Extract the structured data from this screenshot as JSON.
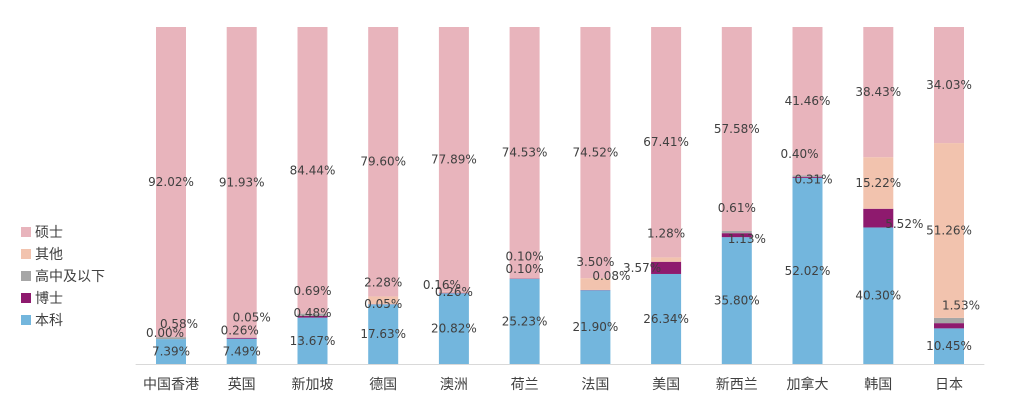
{
  "chart_data": {
    "type": "bar",
    "stacked": true,
    "percent_stacked": true,
    "categories": [
      "中国香港",
      "英国",
      "新加坡",
      "德国",
      "澳洲",
      "荷兰",
      "法国",
      "美国",
      "新西兰",
      "加拿大",
      "韩国",
      "日本"
    ],
    "series": [
      {
        "name": "本科",
        "color": "#73b6dd",
        "values": [
          7.39,
          7.49,
          13.67,
          17.63,
          20.82,
          25.23,
          21.9,
          26.34,
          35.8,
          52.02,
          40.3,
          10.45
        ],
        "labels": [
          "7.39%",
          "7.49%",
          "13.67%",
          "17.63%",
          "20.82%",
          "25.23%",
          "21.90%",
          "26.34%",
          "35.80%",
          "52.02%",
          "40.30%",
          "10.45%"
        ]
      },
      {
        "name": "博士",
        "color": "#8e1a6e",
        "values": [
          0.0,
          0.26,
          0.48,
          0.05,
          0.16,
          0.1,
          0.08,
          3.57,
          1.13,
          0.31,
          5.52,
          1.53
        ],
        "labels": [
          "0.00%",
          "0.26%",
          "0.48%",
          "0.05%",
          "0.16%",
          "0.10%",
          "0.08%",
          "3.57%",
          "1.13%",
          "0.31%",
          "5.52%",
          "1.53%"
        ]
      },
      {
        "name": "高中及以下",
        "color": "#a6a6a6",
        "values": [
          0.58,
          0.05,
          0.69,
          0.0,
          0.0,
          0.1,
          0.0,
          0.0,
          0.61,
          0.4,
          0.0,
          1.53
        ],
        "labels": [
          "0.58%",
          "0.05%",
          "0.69%",
          "",
          "",
          "0.10%",
          "",
          "",
          "0.61%",
          "0.40%",
          "",
          ""
        ]
      },
      {
        "name": "其他",
        "color": "#f2c3ae",
        "values": [
          0.0,
          0.0,
          0.0,
          2.28,
          0.26,
          0.0,
          3.5,
          1.28,
          0.0,
          0.0,
          15.22,
          51.26
        ],
        "labels": [
          "",
          "",
          "",
          "2.28%",
          "0.26%",
          "",
          "3.50%",
          "1.28%",
          "",
          "",
          "15.22%",
          "51.26%"
        ]
      },
      {
        "name": "硕士",
        "color": "#e8b4bc",
        "values": [
          92.02,
          91.93,
          84.44,
          79.6,
          77.89,
          74.53,
          74.52,
          67.41,
          57.58,
          41.46,
          38.43,
          34.03
        ],
        "labels": [
          "92.02%",
          "91.93%",
          "84.44%",
          "79.60%",
          "77.89%",
          "74.53%",
          "74.52%",
          "67.41%",
          "57.58%",
          "41.46%",
          "38.43%",
          "34.03%"
        ]
      }
    ],
    "legend_order": [
      "硕士",
      "其他",
      "高中及以下",
      "博士",
      "本科"
    ],
    "legend_position": "left",
    "ylim": [
      0,
      100
    ],
    "grid": false
  }
}
